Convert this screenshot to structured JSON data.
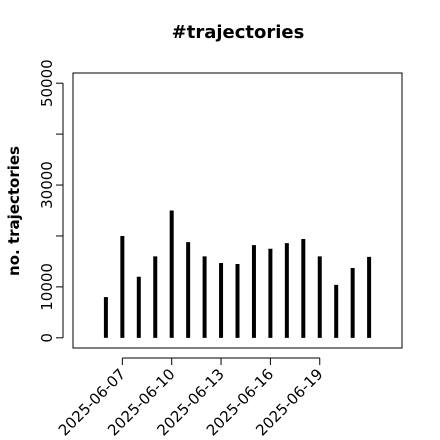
{
  "chart_data": {
    "type": "bar-h",
    "title": "#trajectories",
    "y_label": "no. trajectories",
    "x": [
      "2025-06-06",
      "2025-06-07",
      "2025-06-08",
      "2025-06-09",
      "2025-06-10",
      "2025-06-11",
      "2025-06-12",
      "2025-06-13",
      "2025-06-14",
      "2025-06-15",
      "2025-06-16",
      "2025-06-17",
      "2025-06-18",
      "2025-06-19",
      "2025-06-20",
      "2025-06-21",
      "2025-06-22"
    ],
    "values": [
      8000,
      20000,
      12000,
      16000,
      25000,
      18800,
      16000,
      14700,
      14500,
      18200,
      17500,
      18600,
      19400,
      16000,
      10400,
      13700,
      15900
    ],
    "color": "#000000",
    "xlim": [
      "2025-06-04",
      "2025-06-24"
    ],
    "xticks": [
      "2025-06-07",
      "2025-06-10",
      "2025-06-13",
      "2025-06-16",
      "2025-06-19"
    ],
    "ylim": [
      -2000,
      52000
    ],
    "yticks": [
      0,
      10000,
      30000,
      50000
    ],
    "yticks_unlabeled": [
      20000,
      40000
    ]
  }
}
